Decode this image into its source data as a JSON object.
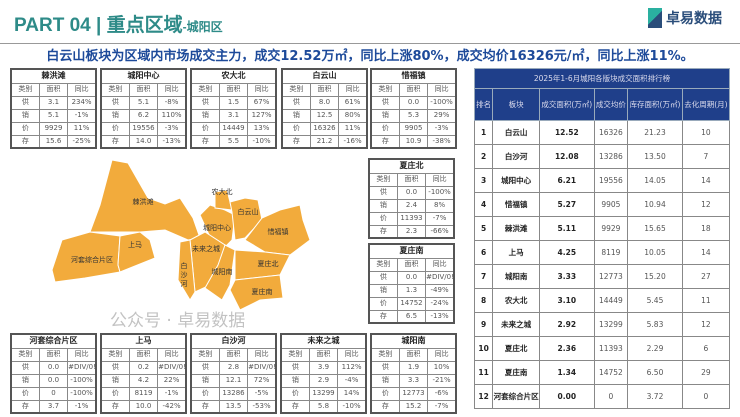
{
  "header": {
    "title": "PART 04 | 重点区域",
    "subtitle": "-城阳区",
    "logo": "卓易数据"
  },
  "headline": "白云山板块为区域内市场成交主力，成交12.52万㎡，同比上涨80%，成交均价16326元/㎡，同比上涨11%。",
  "table_columns": [
    "类别",
    "面积",
    "同比"
  ],
  "row_labels": [
    "供",
    "销",
    "价",
    "存"
  ],
  "block_tables": [
    {
      "name": "棘洪滩",
      "rows": [
        [
          "3.1",
          "234%"
        ],
        [
          "5.1",
          "-1%"
        ],
        [
          "9929",
          "11%"
        ],
        [
          "15.6",
          "-25%"
        ]
      ]
    },
    {
      "name": "城阳中心",
      "rows": [
        [
          "5.1",
          "-8%"
        ],
        [
          "6.2",
          "110%"
        ],
        [
          "19556",
          "-3%"
        ],
        [
          "14.0",
          "-13%"
        ]
      ]
    },
    {
      "name": "农大北",
      "rows": [
        [
          "1.5",
          "67%"
        ],
        [
          "3.1",
          "127%"
        ],
        [
          "14449",
          "13%"
        ],
        [
          "5.5",
          "-10%"
        ]
      ]
    },
    {
      "name": "白云山",
      "rows": [
        [
          "8.0",
          "61%"
        ],
        [
          "12.5",
          "80%"
        ],
        [
          "16326",
          "11%"
        ],
        [
          "21.2",
          "-16%"
        ]
      ]
    },
    {
      "name": "惜福镇",
      "rows": [
        [
          "0.0",
          "-100%"
        ],
        [
          "5.3",
          "29%"
        ],
        [
          "9905",
          "-3%"
        ],
        [
          "10.9",
          "-38%"
        ]
      ]
    },
    {
      "name": "夏庄北",
      "rows": [
        [
          "0.0",
          "-100%"
        ],
        [
          "2.4",
          "8%"
        ],
        [
          "11393",
          "-7%"
        ],
        [
          "2.3",
          "-66%"
        ]
      ]
    },
    {
      "name": "夏庄南",
      "rows": [
        [
          "0.0",
          "#DIV/0!"
        ],
        [
          "1.3",
          "-49%"
        ],
        [
          "14752",
          "-24%"
        ],
        [
          "6.5",
          "-13%"
        ]
      ]
    },
    {
      "name": "河套综合片区",
      "rows": [
        [
          "0.0",
          "#DIV/0!"
        ],
        [
          "0.0",
          "-100%"
        ],
        [
          "0",
          "-100%"
        ],
        [
          "3.7",
          "-1%"
        ]
      ]
    },
    {
      "name": "上马",
      "rows": [
        [
          "0.2",
          "#DIV/0!"
        ],
        [
          "4.2",
          "22%"
        ],
        [
          "8119",
          "-1%"
        ],
        [
          "10.0",
          "-42%"
        ]
      ]
    },
    {
      "name": "白沙河",
      "rows": [
        [
          "2.8",
          "#DIV/0!"
        ],
        [
          "12.1",
          "72%"
        ],
        [
          "13286",
          "-5%"
        ],
        [
          "13.5",
          "-53%"
        ]
      ]
    },
    {
      "name": "未来之城",
      "rows": [
        [
          "3.9",
          "112%"
        ],
        [
          "2.9",
          "-4%"
        ],
        [
          "13299",
          "14%"
        ],
        [
          "5.8",
          "-10%"
        ]
      ]
    },
    {
      "name": "城阳南",
      "rows": [
        [
          "1.9",
          "10%"
        ],
        [
          "3.3",
          "-21%"
        ],
        [
          "12773",
          "-6%"
        ],
        [
          "15.2",
          "-7%"
        ]
      ]
    }
  ],
  "ranking": {
    "title": "2025年1-6月城阳各版块成交面积排行榜",
    "columns": [
      "排名",
      "板块",
      "成交面积(万㎡)",
      "成交均价",
      "库存面积(万㎡)",
      "去化周期(月)"
    ],
    "rows": [
      [
        "1",
        "白云山",
        "12.52",
        "16326",
        "21.23",
        "10"
      ],
      [
        "2",
        "白沙河",
        "12.08",
        "13286",
        "13.50",
        "7"
      ],
      [
        "3",
        "城阳中心",
        "6.21",
        "19556",
        "14.05",
        "14"
      ],
      [
        "4",
        "惜福镇",
        "5.27",
        "9905",
        "10.94",
        "12"
      ],
      [
        "5",
        "棘洪滩",
        "5.11",
        "9929",
        "15.65",
        "18"
      ],
      [
        "6",
        "上马",
        "4.25",
        "8119",
        "10.05",
        "14"
      ],
      [
        "7",
        "城阳南",
        "3.33",
        "12773",
        "15.20",
        "27"
      ],
      [
        "8",
        "农大北",
        "3.10",
        "14449",
        "5.45",
        "11"
      ],
      [
        "9",
        "未来之城",
        "2.92",
        "13299",
        "5.83",
        "12"
      ],
      [
        "10",
        "夏庄北",
        "2.36",
        "11393",
        "2.29",
        "6"
      ],
      [
        "11",
        "夏庄南",
        "1.34",
        "14752",
        "6.50",
        "29"
      ],
      [
        "12",
        "河套综合片区",
        "0.00",
        "0",
        "3.72",
        "0"
      ]
    ]
  },
  "map": {
    "fill": "#f2ab3c",
    "labels": [
      "棘洪滩",
      "河套综合片区",
      "上马",
      "城阳中心",
      "农大北",
      "白云山",
      "惜福镇",
      "未来之城",
      "白沙河",
      "城阳南",
      "夏庄北",
      "夏庄南"
    ]
  },
  "watermark": "公众号 · 卓易数据"
}
